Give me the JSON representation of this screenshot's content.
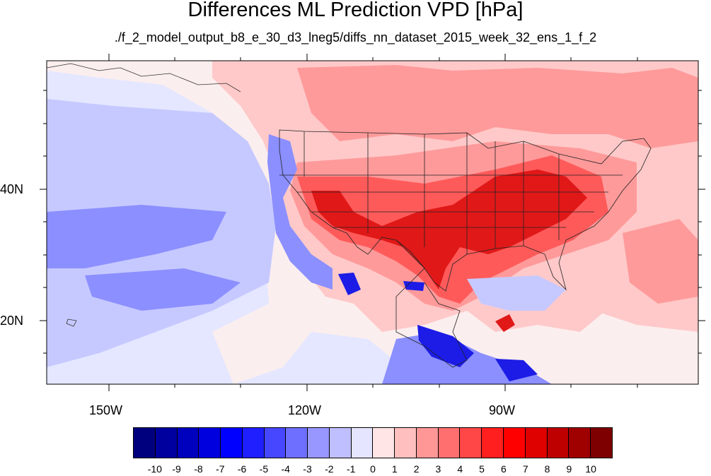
{
  "title": "Differences ML Prediction VPD [hPa]",
  "subtitle": "./f_2_model_output_b8_e_30_d3_lneg5/diffs_nn_dataset_2015_week_32_ens_1_f_2",
  "axes": {
    "lon_labels": [
      "150W",
      "120W",
      "90W"
    ],
    "lat_labels": [
      "40N",
      "20N"
    ]
  },
  "colorbar": {
    "colors": [
      "#00007f",
      "#00009f",
      "#0000bf",
      "#0000df",
      "#0000ff",
      "#1f1fff",
      "#4747ff",
      "#6f6fff",
      "#9797ff",
      "#bfbfff",
      "#e5e5ff",
      "#ffe5e5",
      "#ffbfbf",
      "#ff9797",
      "#ff6f6f",
      "#ff4747",
      "#ff1f1f",
      "#ff0000",
      "#df0000",
      "#bf0000",
      "#9f0000",
      "#7f0000"
    ],
    "labels": [
      "-10",
      "-9",
      "-8",
      "-7",
      "-6",
      "-5",
      "-4",
      "-3",
      "-2",
      "-1",
      "0",
      "1",
      "2",
      "3",
      "4",
      "5",
      "6",
      "7",
      "8",
      "9",
      "10"
    ]
  },
  "map_colors": {
    "ocean_west": "#e4e7ff",
    "ocean_neutral": "#fbeeee",
    "light_red": "#ffc9c9",
    "medium_red": "#ff9a9a",
    "strong_red": "#ff5a5a",
    "deep_red": "#e01818",
    "light_blue": "#c6c9ff",
    "medium_blue": "#8b8fff",
    "deep_blue": "#1c1ce6"
  }
}
